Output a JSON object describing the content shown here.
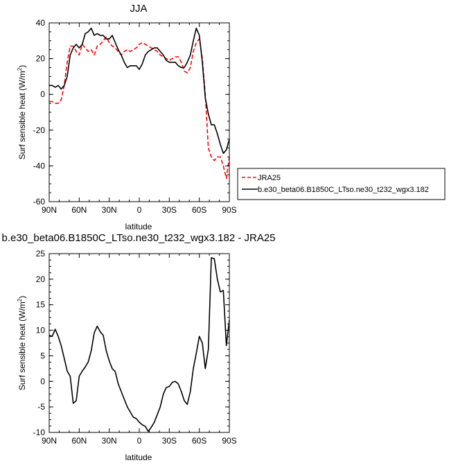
{
  "chart_data": [
    {
      "type": "line",
      "title": "JJA",
      "xlabel": "latitude",
      "ylabel": "Surf sensible heat (W/m²)",
      "xlim": [
        -90,
        90
      ],
      "ylim": [
        -60,
        40
      ],
      "x_ticks": [
        -90,
        -60,
        -30,
        0,
        30,
        60,
        90
      ],
      "x_tick_labels": [
        "90N",
        "60N",
        "30N",
        "0",
        "30S",
        "60S",
        "90S"
      ],
      "y_ticks": [
        -60,
        -40,
        -20,
        0,
        20,
        40
      ],
      "y_tick_labels": [
        "-60",
        "-40",
        "-20",
        "0",
        "20",
        "40"
      ],
      "legend_position": "right",
      "series": [
        {
          "name": "JRA25",
          "color": "#ff0000",
          "style": "dashed",
          "x": [
            -90,
            -87,
            -84,
            -81,
            -78,
            -75,
            -72,
            -69,
            -66,
            -63,
            -60,
            -57,
            -54,
            -51,
            -48,
            -45,
            -42,
            -39,
            -36,
            -33,
            -30,
            -27,
            -24,
            -21,
            -18,
            -15,
            -12,
            -9,
            -6,
            -3,
            0,
            3,
            6,
            9,
            12,
            15,
            18,
            21,
            24,
            27,
            30,
            33,
            36,
            39,
            42,
            45,
            48,
            51,
            54,
            57,
            60,
            63,
            66,
            69,
            72,
            75,
            78,
            81,
            84,
            87,
            90
          ],
          "y": [
            -4,
            -4,
            -5,
            -5,
            -3,
            5,
            18,
            27,
            27,
            24,
            22,
            28,
            26,
            24,
            25,
            22,
            27,
            28,
            30,
            32,
            29,
            27,
            26,
            24,
            22,
            24,
            25,
            24,
            25,
            26,
            28,
            29,
            28,
            27,
            26,
            25,
            24,
            22,
            21,
            20,
            19,
            20,
            21,
            21,
            18,
            13,
            12,
            15,
            24,
            29,
            31,
            20,
            0,
            -30,
            -35,
            -37,
            -35,
            -35,
            -40,
            -47,
            -35
          ]
        },
        {
          "name": "b.e30_beta06.B1850C_LTso.ne30_t232_wgx3.182",
          "color": "#000000",
          "style": "solid",
          "x": [
            -90,
            -87,
            -84,
            -81,
            -78,
            -75,
            -72,
            -69,
            -66,
            -63,
            -60,
            -57,
            -54,
            -51,
            -48,
            -45,
            -42,
            -39,
            -36,
            -33,
            -30,
            -27,
            -24,
            -21,
            -18,
            -15,
            -12,
            -9,
            -6,
            -3,
            0,
            3,
            6,
            9,
            12,
            15,
            18,
            21,
            24,
            27,
            30,
            33,
            36,
            39,
            42,
            45,
            48,
            51,
            54,
            57,
            60,
            63,
            66,
            69,
            72,
            75,
            78,
            81,
            84,
            87,
            90
          ],
          "y": [
            5,
            5,
            4,
            5,
            3,
            5,
            10,
            22,
            26,
            28,
            26,
            28,
            34,
            35,
            37,
            33,
            34,
            33,
            33,
            31,
            31,
            33,
            29,
            25,
            22,
            18,
            15,
            16,
            16,
            16,
            14,
            17,
            22,
            24,
            25,
            26,
            26,
            24,
            22,
            19,
            18,
            18,
            18,
            16,
            15,
            15,
            18,
            22,
            30,
            37,
            33,
            18,
            -2,
            -11,
            -17,
            -17,
            -22,
            -28,
            -33,
            -31,
            -25
          ]
        }
      ]
    },
    {
      "type": "line",
      "title": "b.e30_beta06.B1850C_LTso.ne30_t232_wgx3.182 - JRA25",
      "xlabel": "latitude",
      "ylabel": "Surf sensible heat (W/m²)",
      "xlim": [
        -90,
        90
      ],
      "ylim": [
        -10,
        25
      ],
      "x_ticks": [
        -90,
        -60,
        -30,
        0,
        30,
        60,
        90
      ],
      "x_tick_labels": [
        "90N",
        "60N",
        "30N",
        "0",
        "30S",
        "60S",
        "90S"
      ],
      "y_ticks": [
        -10,
        -5,
        0,
        5,
        10,
        15,
        20,
        25
      ],
      "y_tick_labels": [
        "-10",
        "-5",
        "0",
        "5",
        "10",
        "15",
        "20",
        "25"
      ],
      "series": [
        {
          "color": "#000000",
          "style": "solid",
          "x": [
            -90,
            -87,
            -84,
            -81,
            -78,
            -75,
            -72,
            -69,
            -66,
            -63,
            -60,
            -57,
            -54,
            -51,
            -48,
            -45,
            -42,
            -39,
            -36,
            -33,
            -30,
            -27,
            -24,
            -21,
            -18,
            -15,
            -12,
            -9,
            -6,
            -3,
            0,
            3,
            6,
            9,
            12,
            15,
            18,
            21,
            24,
            27,
            30,
            33,
            36,
            39,
            42,
            45,
            48,
            51,
            54,
            57,
            60,
            63,
            66,
            69,
            72,
            75,
            78,
            81,
            84,
            87,
            90
          ],
          "y": [
            9,
            8.8,
            10.2,
            8.8,
            7,
            4.5,
            2,
            1,
            -4.3,
            -3.8,
            1,
            2,
            2.8,
            3.8,
            6,
            9.5,
            10.8,
            9.7,
            9,
            6,
            4,
            2.5,
            1.9,
            -0.5,
            -2,
            -3.5,
            -5,
            -6,
            -7,
            -7.3,
            -8,
            -8.5,
            -8.8,
            -9.8,
            -9,
            -8,
            -6.5,
            -5,
            -2.5,
            -1.2,
            -1,
            -0.2,
            0,
            -0.5,
            -2,
            -3.8,
            -4.5,
            -2,
            2.5,
            5.5,
            8.8,
            7.5,
            2.5,
            6.3,
            24.2,
            24,
            20,
            17.5,
            17.8,
            7,
            12
          ]
        }
      ]
    }
  ]
}
